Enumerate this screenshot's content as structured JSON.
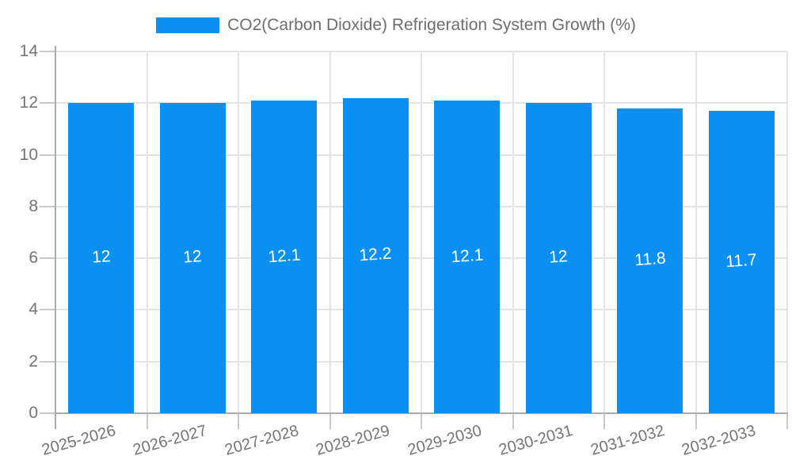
{
  "chart_data": {
    "type": "bar",
    "title": "CO2(Carbon Dioxide) Refrigeration System Growth (%)",
    "legend": {
      "position": "top",
      "label": "CO2(Carbon Dioxide) Refrigeration System Growth (%)"
    },
    "categories": [
      "2025-2026",
      "2026-2027",
      "2027-2028",
      "2028-2029",
      "2029-2030",
      "2030-2031",
      "2031-2032",
      "2032-2033"
    ],
    "values": [
      12,
      12,
      12.1,
      12.2,
      12.1,
      12,
      11.8,
      11.7
    ],
    "value_labels": [
      "12",
      "12",
      "12.1",
      "12.2",
      "12.1",
      "12",
      "11.8",
      "11.7"
    ],
    "xlabel": "",
    "ylabel": "",
    "ylim": [
      0,
      14
    ],
    "yticks": [
      0,
      2,
      4,
      6,
      8,
      10,
      12,
      14
    ],
    "grid": "both",
    "data_label_position": "inside-center"
  },
  "colors": {
    "bar": "#0a90f2",
    "grid": "#e4e4e4",
    "axis": "#ababab",
    "tick": "#c9c9c9",
    "axis_text": "#757575",
    "legend_text": "#6e6e6e",
    "data_label": "#ffffff",
    "background": "#ffffff"
  }
}
